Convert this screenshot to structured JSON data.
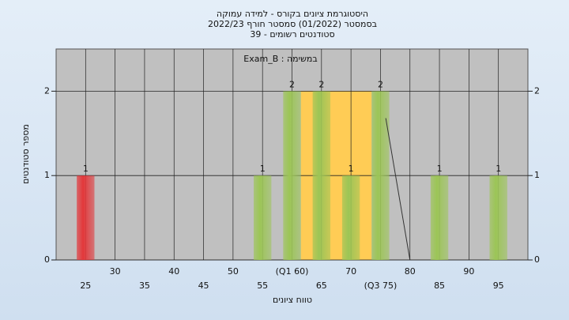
{
  "chart_data": {
    "type": "histogram",
    "title": [
      "היסטוגרמת ציונים בקורס - למידה עמוקה",
      "בסמסטר (01/2022) סמסטר חורף 2022/23",
      "סטודנטים רשומים - 39"
    ],
    "annotation": "במשימה : Exam_B",
    "x_label": "טווח ציונים",
    "y_label": "מספר סטודנטים",
    "x": [
      25,
      55,
      60,
      65,
      70,
      75,
      85,
      95
    ],
    "values": [
      1,
      1,
      2,
      2,
      1,
      2,
      1,
      1
    ],
    "colors": [
      "#e3373a",
      "#9cc556",
      "#9cc556",
      "#9cc556",
      "#9cc556",
      "#9cc556",
      "#9cc556",
      "#9cc556"
    ],
    "quartile_band": {
      "from": 61.5,
      "to": 73.5,
      "top": 2,
      "color": "#ffcc55"
    },
    "trend_line": {
      "x": [
        75.9,
        80
      ],
      "y": [
        1.68,
        0
      ]
    },
    "xlim": [
      20,
      100
    ],
    "xticks": [
      25,
      30,
      35,
      40,
      45,
      50,
      55,
      {
        "value": 60,
        "label": "(Q1 60)"
      },
      65,
      70,
      {
        "value": 75,
        "label": "(Q3 75)"
      },
      80,
      85,
      90,
      95
    ],
    "ylim": [
      0,
      2.5
    ],
    "yticks": [
      0,
      1,
      2
    ],
    "grid": true,
    "plot_background": "#c0c0c0"
  }
}
